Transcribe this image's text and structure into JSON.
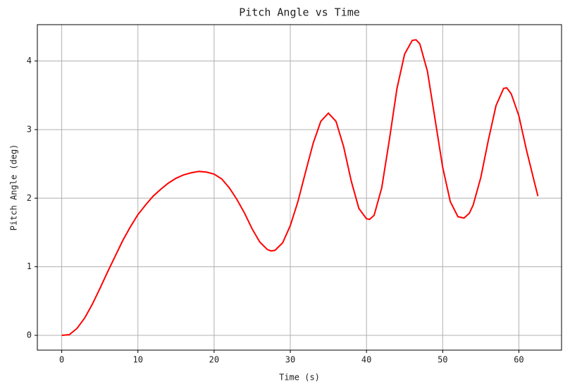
{
  "chart_data": {
    "type": "line",
    "title": "Pitch Angle vs Time",
    "x_label": "Time (s)",
    "y_label": "Pitch Angle (deg)",
    "x": [
      0,
      1,
      2,
      3,
      4,
      5,
      6,
      7,
      8,
      9,
      10,
      11,
      12,
      13,
      14,
      15,
      16,
      17,
      18,
      19,
      20,
      21,
      22,
      23,
      24,
      25,
      26,
      27,
      27.5,
      28,
      29,
      30,
      31,
      32,
      33,
      34,
      35,
      36,
      37,
      38,
      39,
      40,
      40.4,
      41,
      42,
      43,
      44,
      45,
      46,
      46.5,
      47,
      48,
      49,
      50,
      51,
      52,
      52.8,
      53.5,
      54,
      55,
      56,
      57,
      58,
      58.4,
      59,
      60,
      61,
      62,
      62.5
    ],
    "series": [
      {
        "name": "Pitch Angle",
        "color": "#ff0000",
        "values": [
          0,
          0.01,
          0.1,
          0.25,
          0.45,
          0.68,
          0.92,
          1.15,
          1.38,
          1.58,
          1.76,
          1.9,
          2.03,
          2.13,
          2.22,
          2.29,
          2.34,
          2.37,
          2.39,
          2.38,
          2.35,
          2.28,
          2.15,
          1.98,
          1.78,
          1.55,
          1.36,
          1.25,
          1.23,
          1.24,
          1.35,
          1.6,
          1.95,
          2.38,
          2.8,
          3.12,
          3.24,
          3.12,
          2.75,
          2.25,
          1.85,
          1.7,
          1.69,
          1.75,
          2.15,
          2.85,
          3.6,
          4.1,
          4.3,
          4.31,
          4.25,
          3.85,
          3.15,
          2.45,
          1.95,
          1.73,
          1.71,
          1.78,
          1.9,
          2.3,
          2.85,
          3.35,
          3.6,
          3.61,
          3.52,
          3.2,
          2.7,
          2.25,
          2.03
        ]
      }
    ],
    "xlim": [
      -3.2,
      65.6
    ],
    "ylim": [
      -0.216,
      4.53
    ],
    "xticks": [
      0,
      10,
      20,
      30,
      40,
      50,
      60
    ],
    "yticks": [
      0,
      1,
      2,
      3,
      4
    ],
    "grid": true
  }
}
